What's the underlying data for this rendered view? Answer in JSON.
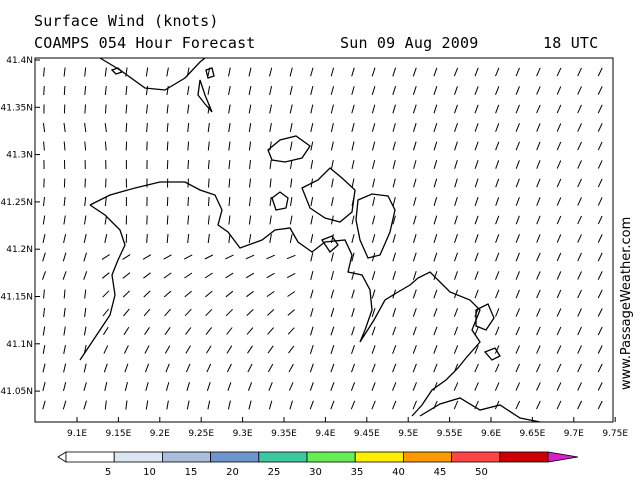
{
  "header": {
    "title": "Surface Wind (knots)",
    "model": "COAMPS 054 Hour Forecast",
    "date": "Sun 09 Aug 2009",
    "time": "18 UTC"
  },
  "watermark": "www.PassageWeather.com",
  "axes": {
    "lat_labels": [
      "41.4N",
      "41.35N",
      "41.3N",
      "41.25N",
      "41.2N",
      "41.15N",
      "41.1N",
      "41.05N"
    ],
    "lon_labels": [
      "9.1E",
      "9.15E",
      "9.2E",
      "9.25E",
      "9.3E",
      "9.35E",
      "9.4E",
      "9.45E",
      "9.5E",
      "9.55E",
      "9.6E",
      "9.65E",
      "9.7E",
      "9.75E"
    ]
  },
  "legend": {
    "labels": [
      "5",
      "10",
      "15",
      "20",
      "25",
      "30",
      "35",
      "40",
      "45",
      "50"
    ],
    "colors": [
      "#ffffff",
      "#dce6f2",
      "#aabfdc",
      "#6f95cf",
      "#3ec8a0",
      "#66ee55",
      "#ffee00",
      "#ff9900",
      "#ff4444",
      "#cc0000",
      "#d422c8"
    ]
  },
  "colors": {
    "land_outline": "#000000",
    "wind_barb": "#000000",
    "background": "#ffffff"
  }
}
